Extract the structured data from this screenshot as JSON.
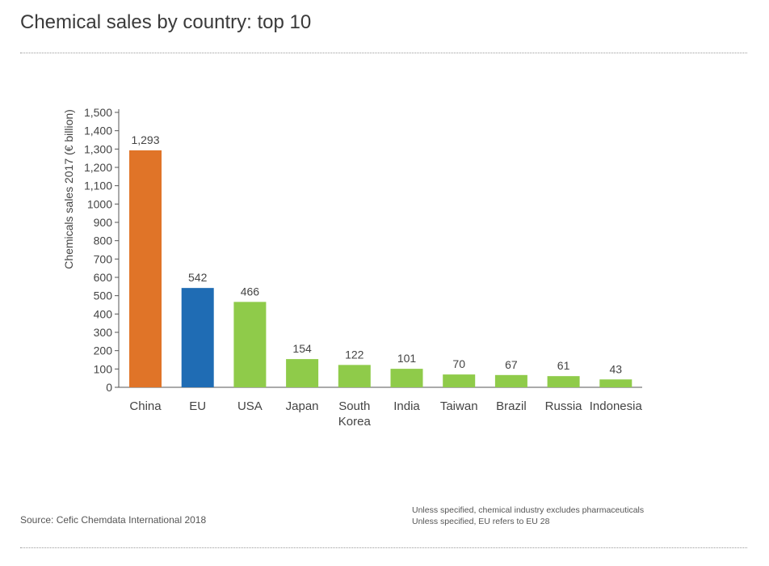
{
  "title": "Chemical sales by country: top 10",
  "source": "Source: Cefic Chemdata International 2018",
  "notes": [
    "Unless specified, chemical industry excludes pharmaceuticals",
    "Unless specified, EU refers to EU 28"
  ],
  "colors": {
    "china": "#e07428",
    "eu": "#1f6cb4",
    "other": "#8fcb4a",
    "axis": "#555555",
    "text": "#444444"
  },
  "chart_data": {
    "type": "bar",
    "title": "Chemical sales by country: top 10",
    "xlabel": "",
    "ylabel": "Chemicals sales 2017 (€ billion)",
    "ylim": [
      0,
      1500
    ],
    "grid": false,
    "categories": [
      "China",
      "EU",
      "USA",
      "Japan",
      "South Korea",
      "India",
      "Taiwan",
      "Brazil",
      "Russia",
      "Indonesia"
    ],
    "category_lines": [
      [
        "China"
      ],
      [
        "EU"
      ],
      [
        "USA"
      ],
      [
        "Japan"
      ],
      [
        "South",
        "Korea"
      ],
      [
        "India"
      ],
      [
        "Taiwan"
      ],
      [
        "Brazil"
      ],
      [
        "Russia"
      ],
      [
        "Indonesia"
      ]
    ],
    "values": [
      1293,
      542,
      466,
      154,
      122,
      101,
      70,
      67,
      61,
      43
    ],
    "value_labels": [
      "1,293",
      "542",
      "466",
      "154",
      "122",
      "101",
      "70",
      "67",
      "61",
      "43"
    ],
    "bar_colors": [
      "china",
      "eu",
      "other",
      "other",
      "other",
      "other",
      "other",
      "other",
      "other",
      "other"
    ],
    "ytick_values": [
      0,
      100,
      200,
      300,
      400,
      500,
      600,
      700,
      800,
      900,
      1000,
      1100,
      1200,
      1300,
      1400,
      1500
    ],
    "ytick_labels": [
      "0",
      "100",
      "200",
      "300",
      "400",
      "500",
      "600",
      "700",
      "800",
      "900",
      "1000",
      "1,100",
      "1,200",
      "1,300",
      "1,400",
      "1,500"
    ]
  }
}
